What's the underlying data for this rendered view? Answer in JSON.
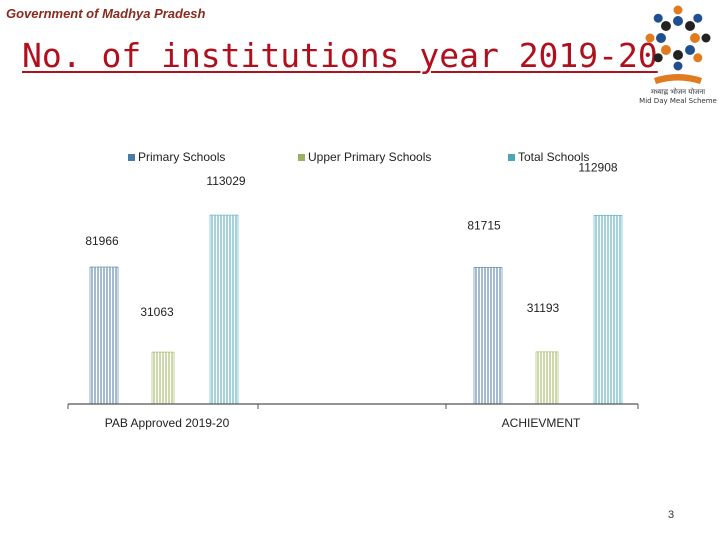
{
  "header": {
    "subtitle": "Government of Madhya Pradesh",
    "title": "No. of institutions year 2019-20"
  },
  "logo": {
    "caption_line1": "मध्याह्न भोजन योजना",
    "caption_line2": "Mid Day Meal Scheme",
    "colors": [
      "#e07b1f",
      "#1f4f8f",
      "#222222"
    ]
  },
  "footer": {
    "page_number": "3"
  },
  "chart_data": {
    "type": "bar",
    "categories": [
      "PAB Approved 2019-20",
      "ACHIEVMENT"
    ],
    "series": [
      {
        "name": "Primary Schools",
        "values": [
          81966,
          81715
        ],
        "color": "#4a7aa6"
      },
      {
        "name": "Upper Primary  Schools",
        "values": [
          31063,
          31193
        ],
        "color": "#9bb25a"
      },
      {
        "name": "Total Schools",
        "values": [
          113029,
          112908
        ],
        "color": "#4ba7b8"
      }
    ],
    "data_labels": [
      [
        "81966",
        "31063",
        "113029"
      ],
      [
        "81715",
        "31193",
        "112908"
      ]
    ],
    "legend_position": "top",
    "grid": false,
    "ylim": [
      0,
      140000
    ],
    "xlabel": "",
    "ylabel": ""
  }
}
